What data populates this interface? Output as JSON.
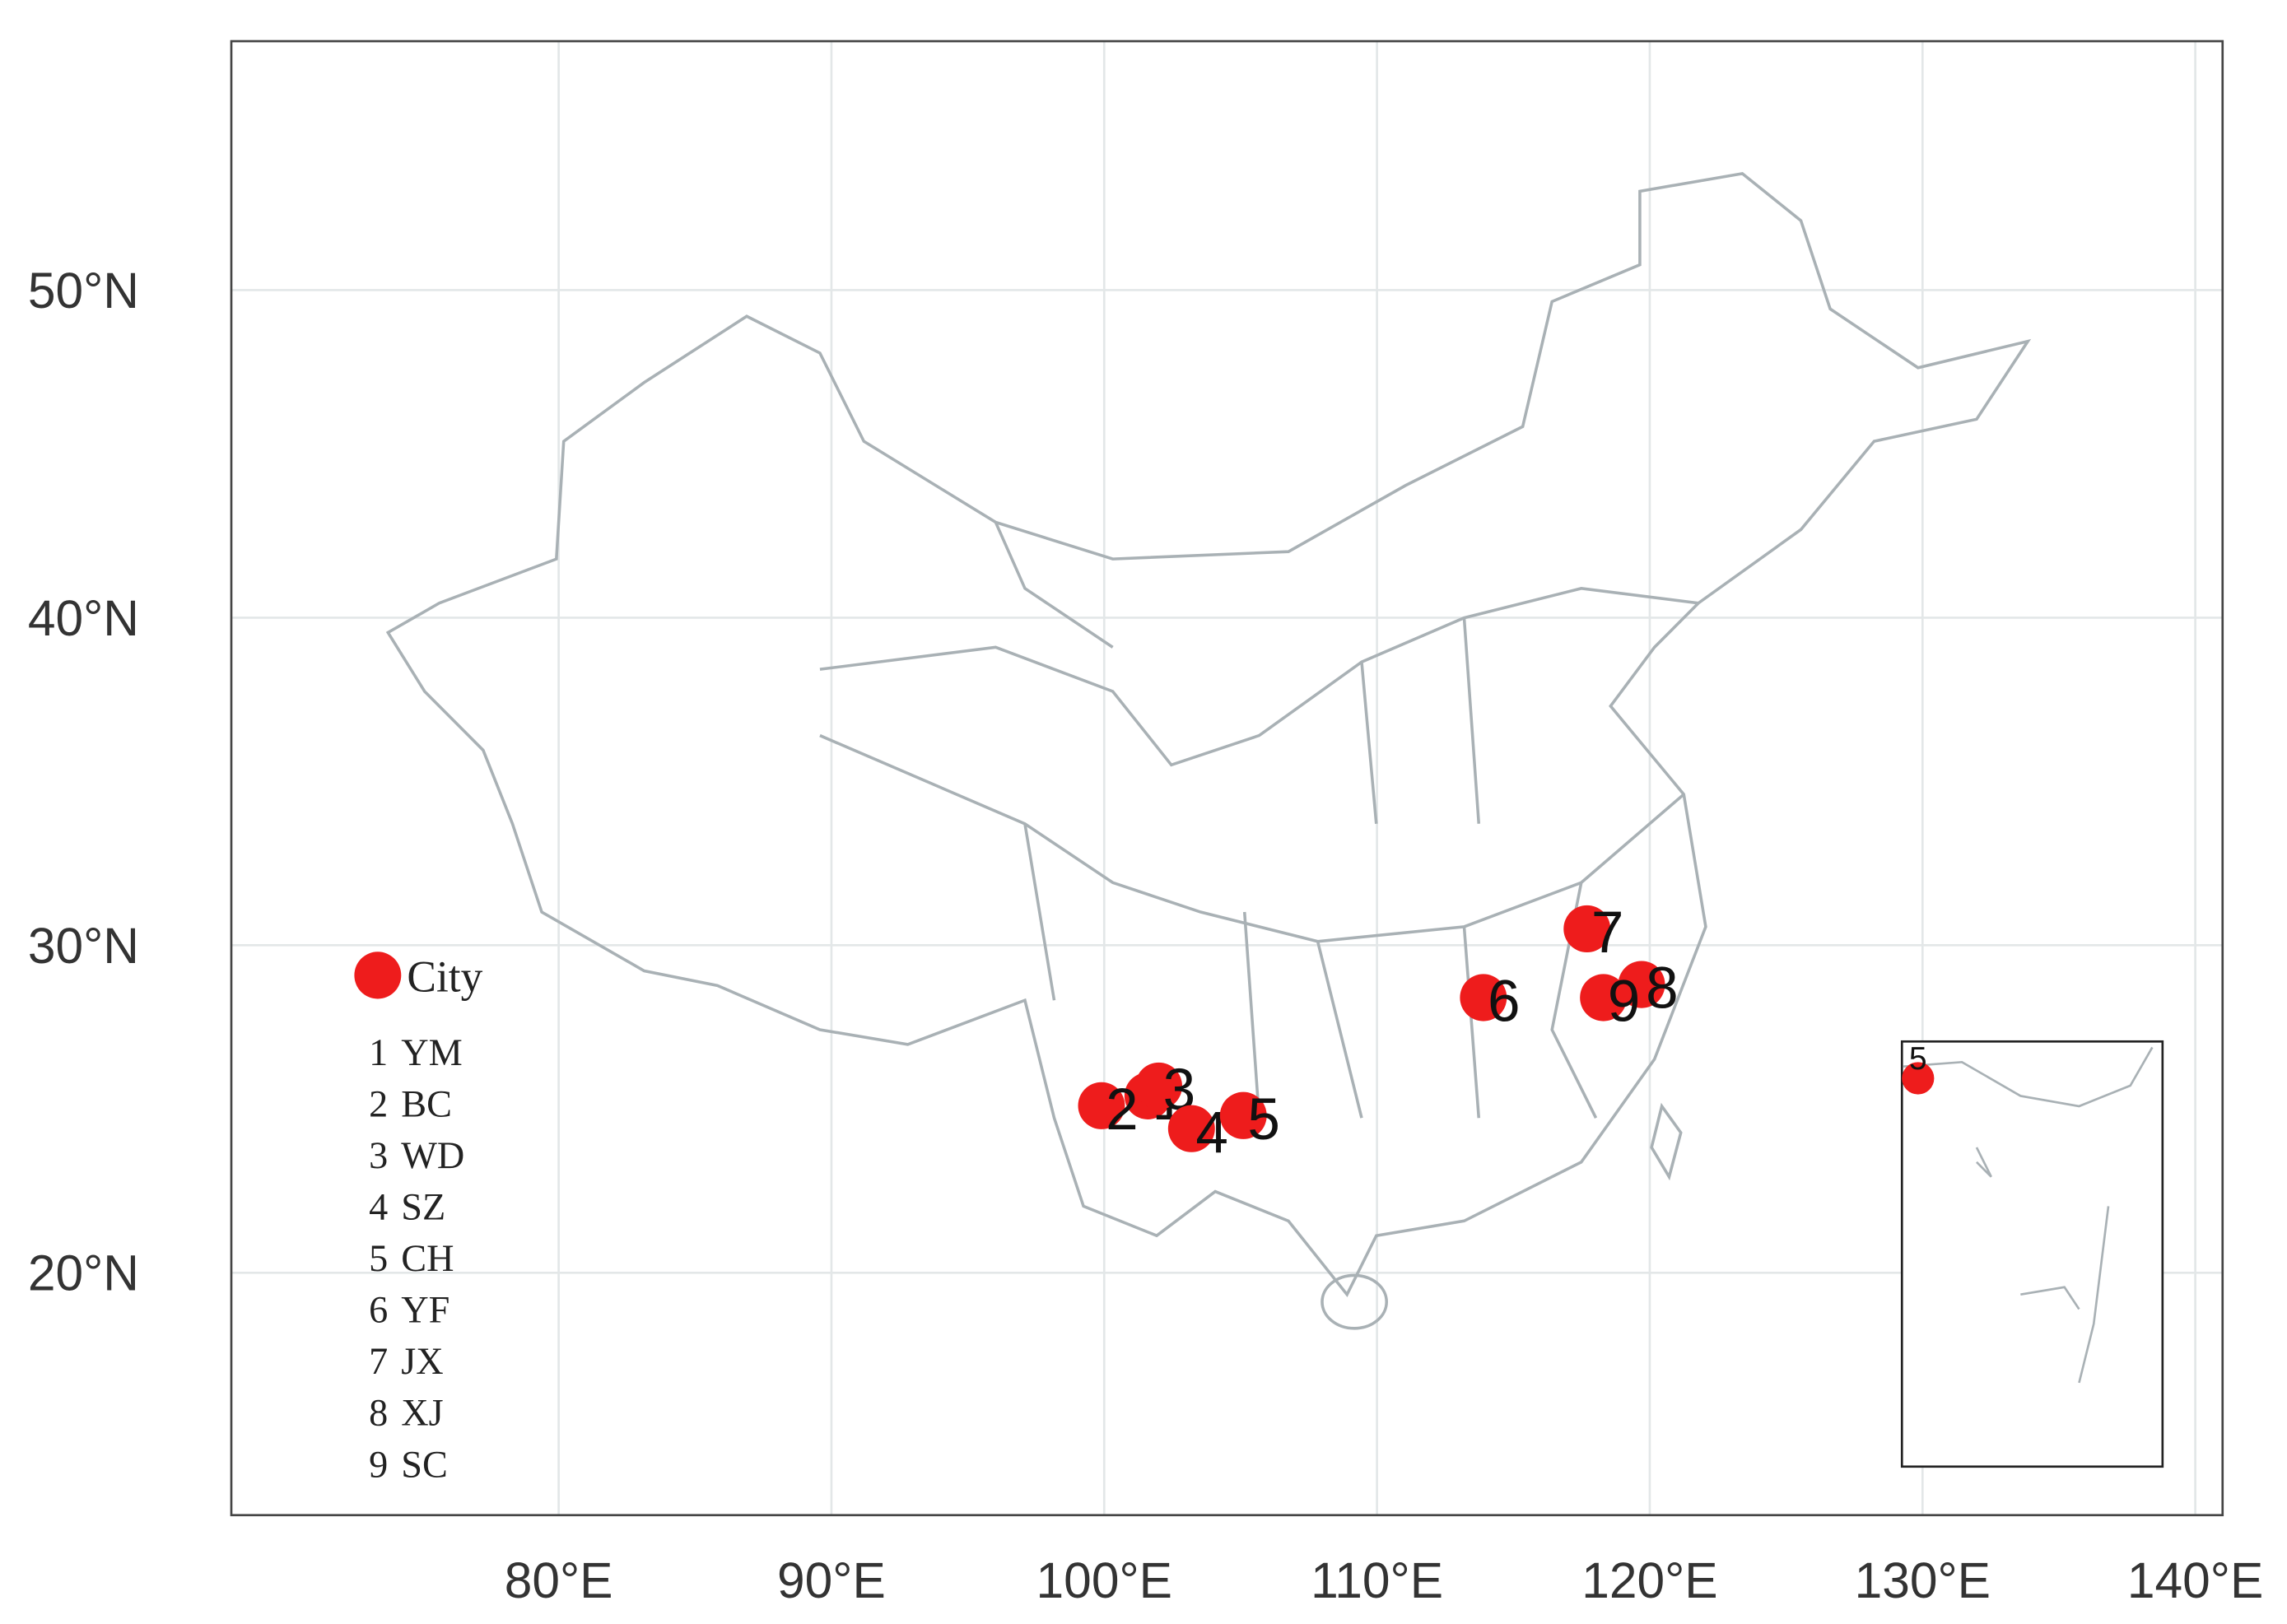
{
  "chart_data": {
    "type": "map",
    "legend_title": "City",
    "color": "#ee1c1c",
    "cities": [
      {
        "id": "1",
        "name": "YM",
        "lon": 101.6,
        "lat": 25.4
      },
      {
        "id": "2",
        "name": "BC",
        "lon": 99.9,
        "lat": 25.1
      },
      {
        "id": "3",
        "name": "WD",
        "lon": 102.0,
        "lat": 25.7
      },
      {
        "id": "4",
        "name": "SZ",
        "lon": 103.2,
        "lat": 24.4
      },
      {
        "id": "5",
        "name": "CH",
        "lon": 105.1,
        "lat": 24.8
      },
      {
        "id": "6",
        "name": "YF",
        "lon": 113.9,
        "lat": 28.4
      },
      {
        "id": "7",
        "name": "JX",
        "lon": 117.7,
        "lat": 30.5
      },
      {
        "id": "8",
        "name": "XJ",
        "lon": 119.7,
        "lat": 28.8
      },
      {
        "id": "9",
        "name": "SC",
        "lon": 118.3,
        "lat": 28.4
      }
    ],
    "xlim": [
      68,
      141
    ],
    "ylim": [
      12.6,
      57.6
    ],
    "xticks": [
      {
        "value": 80,
        "label": "80°E"
      },
      {
        "value": 90,
        "label": "90°E"
      },
      {
        "value": 100,
        "label": "100°E"
      },
      {
        "value": 110,
        "label": "110°E"
      },
      {
        "value": 120,
        "label": "120°E"
      },
      {
        "value": 130,
        "label": "130°E"
      },
      {
        "value": 140,
        "label": "140°E"
      }
    ],
    "yticks": [
      {
        "value": 20,
        "label": "20°N"
      },
      {
        "value": 30,
        "label": "30°N"
      },
      {
        "value": 40,
        "label": "40°N"
      },
      {
        "value": 50,
        "label": "50°N"
      }
    ],
    "grid": true
  }
}
